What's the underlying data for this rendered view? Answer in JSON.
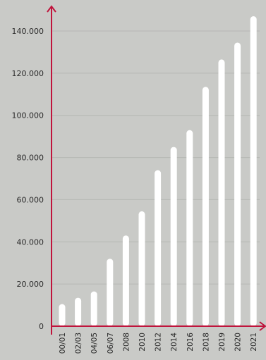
{
  "colors": {
    "background": "#c9cac7",
    "bar": "#ffffff",
    "axis": "#c0143c",
    "grid": "#b6b7b4",
    "text": "#2a2a2a"
  },
  "chart_data": {
    "type": "bar",
    "title": "",
    "xlabel": "",
    "ylabel": "",
    "categories": [
      "00/01",
      "02/03",
      "04/05",
      "06/07",
      "2008",
      "2010",
      "2012",
      "2014",
      "2016",
      "2018",
      "2019",
      "2020",
      "2021"
    ],
    "values": [
      10500,
      13500,
      16500,
      32000,
      43000,
      54500,
      74000,
      85000,
      93000,
      113500,
      126500,
      134500,
      147000
    ],
    "ylim": [
      0,
      148000
    ],
    "yticks": [
      0,
      20000,
      40000,
      60000,
      80000,
      100000,
      120000,
      140000
    ],
    "ytick_labels": [
      "0",
      "20.000",
      "40.000",
      "60.000",
      "80.000",
      "100.000",
      "120.000",
      "140.000"
    ],
    "grid": true,
    "legend": "none"
  }
}
